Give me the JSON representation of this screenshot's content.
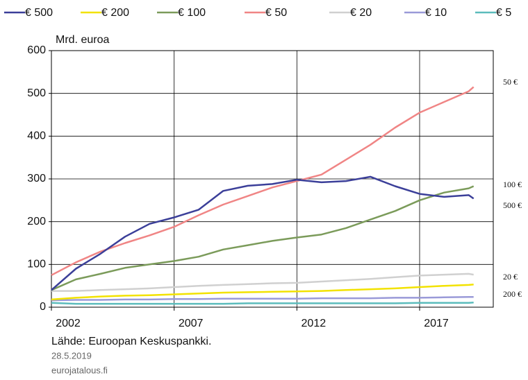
{
  "chart_data": {
    "type": "line",
    "y_label": "Mrd. euroa",
    "x": [
      2002,
      2003,
      2004,
      2005,
      2006,
      2007,
      2008,
      2009,
      2010,
      2011,
      2012,
      2013,
      2014,
      2015,
      2016,
      2017,
      2018,
      2019,
      2019.2
    ],
    "xlim": [
      2002,
      2020
    ],
    "xticks": [
      2002,
      2007,
      2012,
      2017
    ],
    "ylim": [
      0,
      600
    ],
    "yticks": [
      0,
      100,
      200,
      300,
      400,
      500,
      600
    ],
    "grid": true,
    "legend": "top",
    "series": [
      {
        "name": "€ 500",
        "color": "#3b3f99",
        "values": [
          40,
          90,
          125,
          165,
          195,
          210,
          228,
          272,
          284,
          288,
          298,
          292,
          295,
          305,
          283,
          265,
          258,
          262,
          254
        ]
      },
      {
        "name": "€ 200",
        "color": "#f2e200",
        "values": [
          18,
          22,
          25,
          27,
          28,
          30,
          32,
          34,
          35,
          36,
          37,
          38,
          40,
          42,
          44,
          47,
          50,
          52,
          53
        ]
      },
      {
        "name": "€ 100",
        "color": "#7b9b5a",
        "values": [
          40,
          65,
          78,
          92,
          100,
          108,
          118,
          135,
          145,
          155,
          163,
          170,
          185,
          205,
          225,
          250,
          268,
          278,
          283
        ]
      },
      {
        "name": "€ 50",
        "color": "#f08585",
        "values": [
          75,
          105,
          130,
          150,
          168,
          188,
          215,
          240,
          260,
          280,
          295,
          310,
          345,
          380,
          420,
          455,
          480,
          505,
          515
        ]
      },
      {
        "name": "€ 20",
        "color": "#d0d0d0",
        "values": [
          38,
          38,
          40,
          42,
          44,
          47,
          50,
          52,
          54,
          56,
          57,
          60,
          63,
          66,
          70,
          74,
          76,
          78,
          76
        ]
      },
      {
        "name": "€ 10",
        "color": "#9a9ad8",
        "values": [
          16,
          17,
          17,
          18,
          18,
          19,
          19,
          20,
          20,
          20,
          20,
          21,
          21,
          21,
          22,
          22,
          23,
          24,
          24
        ]
      },
      {
        "name": "€ 5",
        "color": "#5bbcbc",
        "values": [
          10,
          8,
          8,
          8,
          8,
          8,
          8,
          8,
          9,
          9,
          9,
          9,
          9,
          9,
          9,
          10,
          10,
          10,
          11
        ]
      }
    ],
    "annotations": [
      "50 €",
      "100 €",
      "500 €",
      "20 €",
      "200 €"
    ],
    "source": "Lähde: Euroopan Keskuspankki.",
    "date": "28.5.2019",
    "site": "eurojatalous.fi"
  }
}
